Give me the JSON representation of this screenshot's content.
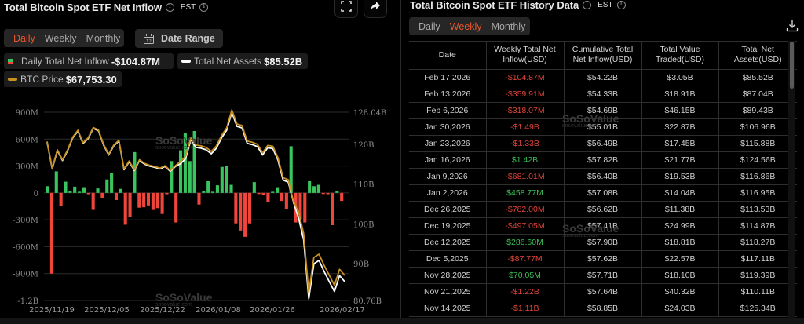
{
  "left": {
    "title": "Total Bitcoin Spot ETF Net Inflow",
    "timezone": "EST",
    "tabs": [
      {
        "label": "Daily",
        "active": true
      },
      {
        "label": "Weekly",
        "active": false
      },
      {
        "label": "Monthly",
        "active": false
      }
    ],
    "date_range_label": "Date Range",
    "calendar_day": "12",
    "legend": {
      "inflow_label": "Daily Total Net Inflow",
      "inflow_value": "-$104.87M",
      "assets_label": "Total Net Assets",
      "assets_value": "$85.52B",
      "price_label": "BTC Price",
      "price_value": "$67,753.30"
    },
    "watermark": "SoSoValue",
    "watermark_sub": "sosovalue.com"
  },
  "chart_data": {
    "type": "bar",
    "title": "Total Bitcoin Spot ETF Net Inflow",
    "left_axis": {
      "label": "Daily Total Net Inflow",
      "ticks": [
        "900M",
        "600M",
        "300M",
        "0",
        "-300M",
        "-600M",
        "-900M",
        "-1.2B"
      ],
      "range": [
        -1200,
        900
      ],
      "unit": "M USD"
    },
    "right_axis": {
      "label": "Total Net Assets",
      "ticks": [
        "128.04B",
        "120B",
        "110B",
        "100B",
        "90B",
        "80.76B"
      ],
      "range": [
        80.76,
        128.04
      ],
      "unit": "B USD"
    },
    "x_ticks": [
      "2025/11/19",
      "2025/12/05",
      "2025/12/22",
      "2026/01/08",
      "2026/01/26",
      "2026/02/17"
    ],
    "grid": true,
    "colors": {
      "positive": "#3ac45e",
      "negative": "#f0453a",
      "assets_line": "#ffffff",
      "price_line": "#c8901e"
    },
    "series": [
      {
        "name": "Daily Total Net Inflow",
        "type": "bar",
        "values": [
          75,
          -900,
          240,
          -150,
          125,
          20,
          70,
          5,
          55,
          -15,
          -190,
          50,
          -60,
          150,
          220,
          -80,
          45,
          -355,
          -270,
          455,
          -165,
          -160,
          -140,
          -190,
          -170,
          -235,
          -15,
          355,
          -330,
          475,
          665,
          355,
          690,
          -130,
          20,
          130,
          0,
          85,
          290,
          305,
          90,
          -340,
          -420,
          -490,
          -340,
          120,
          -10,
          -20,
          -100,
          5,
          55,
          -90,
          -185,
          520,
          -330,
          -290,
          -330,
          130,
          75,
          90,
          -5,
          -15,
          -360,
          20,
          -90
        ],
        "note": "approximate daily values in millions USD read from chart"
      },
      {
        "name": "Total Net Assets",
        "type": "line",
        "values": [
          120.5,
          113.8,
          118.4,
          115.9,
          118.4,
          121.6,
          123.3,
          120.2,
          121.4,
          124.0,
          123.4,
          119.8,
          117.3,
          119.6,
          120.8,
          113.6,
          115.6,
          113.4,
          115.9,
          115.0,
          114.5,
          114.2,
          113.8,
          114.4,
          113.2,
          114.4,
          115.1,
          116.4,
          121.0,
          119.2,
          119.0,
          118.6,
          117.6,
          119.0,
          121.6,
          123.5,
          128.0,
          124.5,
          124.1,
          120.2,
          119.9,
          119.4,
          117.3,
          119.1,
          118.9,
          116.0,
          111.0,
          110.5,
          105.5,
          101.5,
          96.0,
          81.2,
          90.0,
          90.8,
          88.0,
          85.5,
          83.0,
          87.0,
          85.5
        ],
        "note": "approximate, billions USD"
      },
      {
        "name": "BTC Price",
        "type": "line",
        "note": "tracks close to Total Net Assets line, ends at $67,753.30"
      }
    ]
  },
  "right": {
    "title": "Total Bitcoin Spot ETF History Data",
    "timezone": "EST",
    "tabs": [
      {
        "label": "Daily",
        "active": false
      },
      {
        "label": "Weekly",
        "active": true
      },
      {
        "label": "Monthly",
        "active": false
      }
    ],
    "columns": [
      "Date",
      "Weekly Total Net Inflow(USD)",
      "Cumulative Total Net Inflow(USD)",
      "Total Value Traded(USD)",
      "Total Net Assets(USD)"
    ],
    "column_lines": [
      [
        "Date",
        ""
      ],
      [
        "Weekly Total Net",
        "Inflow(USD)"
      ],
      [
        "Cumulative Total",
        "Net Inflow(USD)"
      ],
      [
        "Total Value",
        "Traded(USD)"
      ],
      [
        "Total Net",
        "Assets(USD)"
      ]
    ],
    "rows": [
      {
        "date": "Feb 17,2026",
        "weekly": "-$104.87M",
        "sign": "neg",
        "cumulative": "$54.22B",
        "traded": "$3.05B",
        "assets": "$85.52B"
      },
      {
        "date": "Feb 13,2026",
        "weekly": "-$359.91M",
        "sign": "neg",
        "cumulative": "$54.33B",
        "traded": "$18.91B",
        "assets": "$87.04B"
      },
      {
        "date": "Feb 6,2026",
        "weekly": "-$318.07M",
        "sign": "neg",
        "cumulative": "$54.69B",
        "traded": "$46.15B",
        "assets": "$89.43B"
      },
      {
        "date": "Jan 30,2026",
        "weekly": "-$1.49B",
        "sign": "neg",
        "cumulative": "$55.01B",
        "traded": "$22.87B",
        "assets": "$106.96B"
      },
      {
        "date": "Jan 23,2026",
        "weekly": "-$1.33B",
        "sign": "neg",
        "cumulative": "$56.49B",
        "traded": "$17.45B",
        "assets": "$115.88B"
      },
      {
        "date": "Jan 16,2026",
        "weekly": "$1.42B",
        "sign": "pos",
        "cumulative": "$57.82B",
        "traded": "$21.77B",
        "assets": "$124.56B"
      },
      {
        "date": "Jan 9,2026",
        "weekly": "-$681.01M",
        "sign": "neg",
        "cumulative": "$56.40B",
        "traded": "$19.53B",
        "assets": "$116.86B"
      },
      {
        "date": "Jan 2,2026",
        "weekly": "$458.77M",
        "sign": "pos",
        "cumulative": "$57.08B",
        "traded": "$14.04B",
        "assets": "$116.95B"
      },
      {
        "date": "Dec 26,2025",
        "weekly": "-$782.00M",
        "sign": "neg",
        "cumulative": "$56.62B",
        "traded": "$11.38B",
        "assets": "$113.53B"
      },
      {
        "date": "Dec 19,2025",
        "weekly": "-$497.05M",
        "sign": "neg",
        "cumulative": "$57.41B",
        "traded": "$24.99B",
        "assets": "$114.87B"
      },
      {
        "date": "Dec 12,2025",
        "weekly": "$286.60M",
        "sign": "pos",
        "cumulative": "$57.90B",
        "traded": "$18.81B",
        "assets": "$118.27B"
      },
      {
        "date": "Dec 5,2025",
        "weekly": "-$87.77M",
        "sign": "neg",
        "cumulative": "$57.62B",
        "traded": "$22.57B",
        "assets": "$117.11B"
      },
      {
        "date": "Nov 28,2025",
        "weekly": "$70.05M",
        "sign": "pos",
        "cumulative": "$57.71B",
        "traded": "$18.10B",
        "assets": "$119.39B"
      },
      {
        "date": "Nov 21,2025",
        "weekly": "-$1.22B",
        "sign": "neg",
        "cumulative": "$57.64B",
        "traded": "$40.32B",
        "assets": "$110.11B"
      },
      {
        "date": "Nov 14,2025",
        "weekly": "-$1.11B",
        "sign": "neg",
        "cumulative": "$58.85B",
        "traded": "$24.03B",
        "assets": "$125.34B"
      }
    ],
    "watermark": "SoSoValue",
    "watermark_sub": "sosovalue.com"
  }
}
